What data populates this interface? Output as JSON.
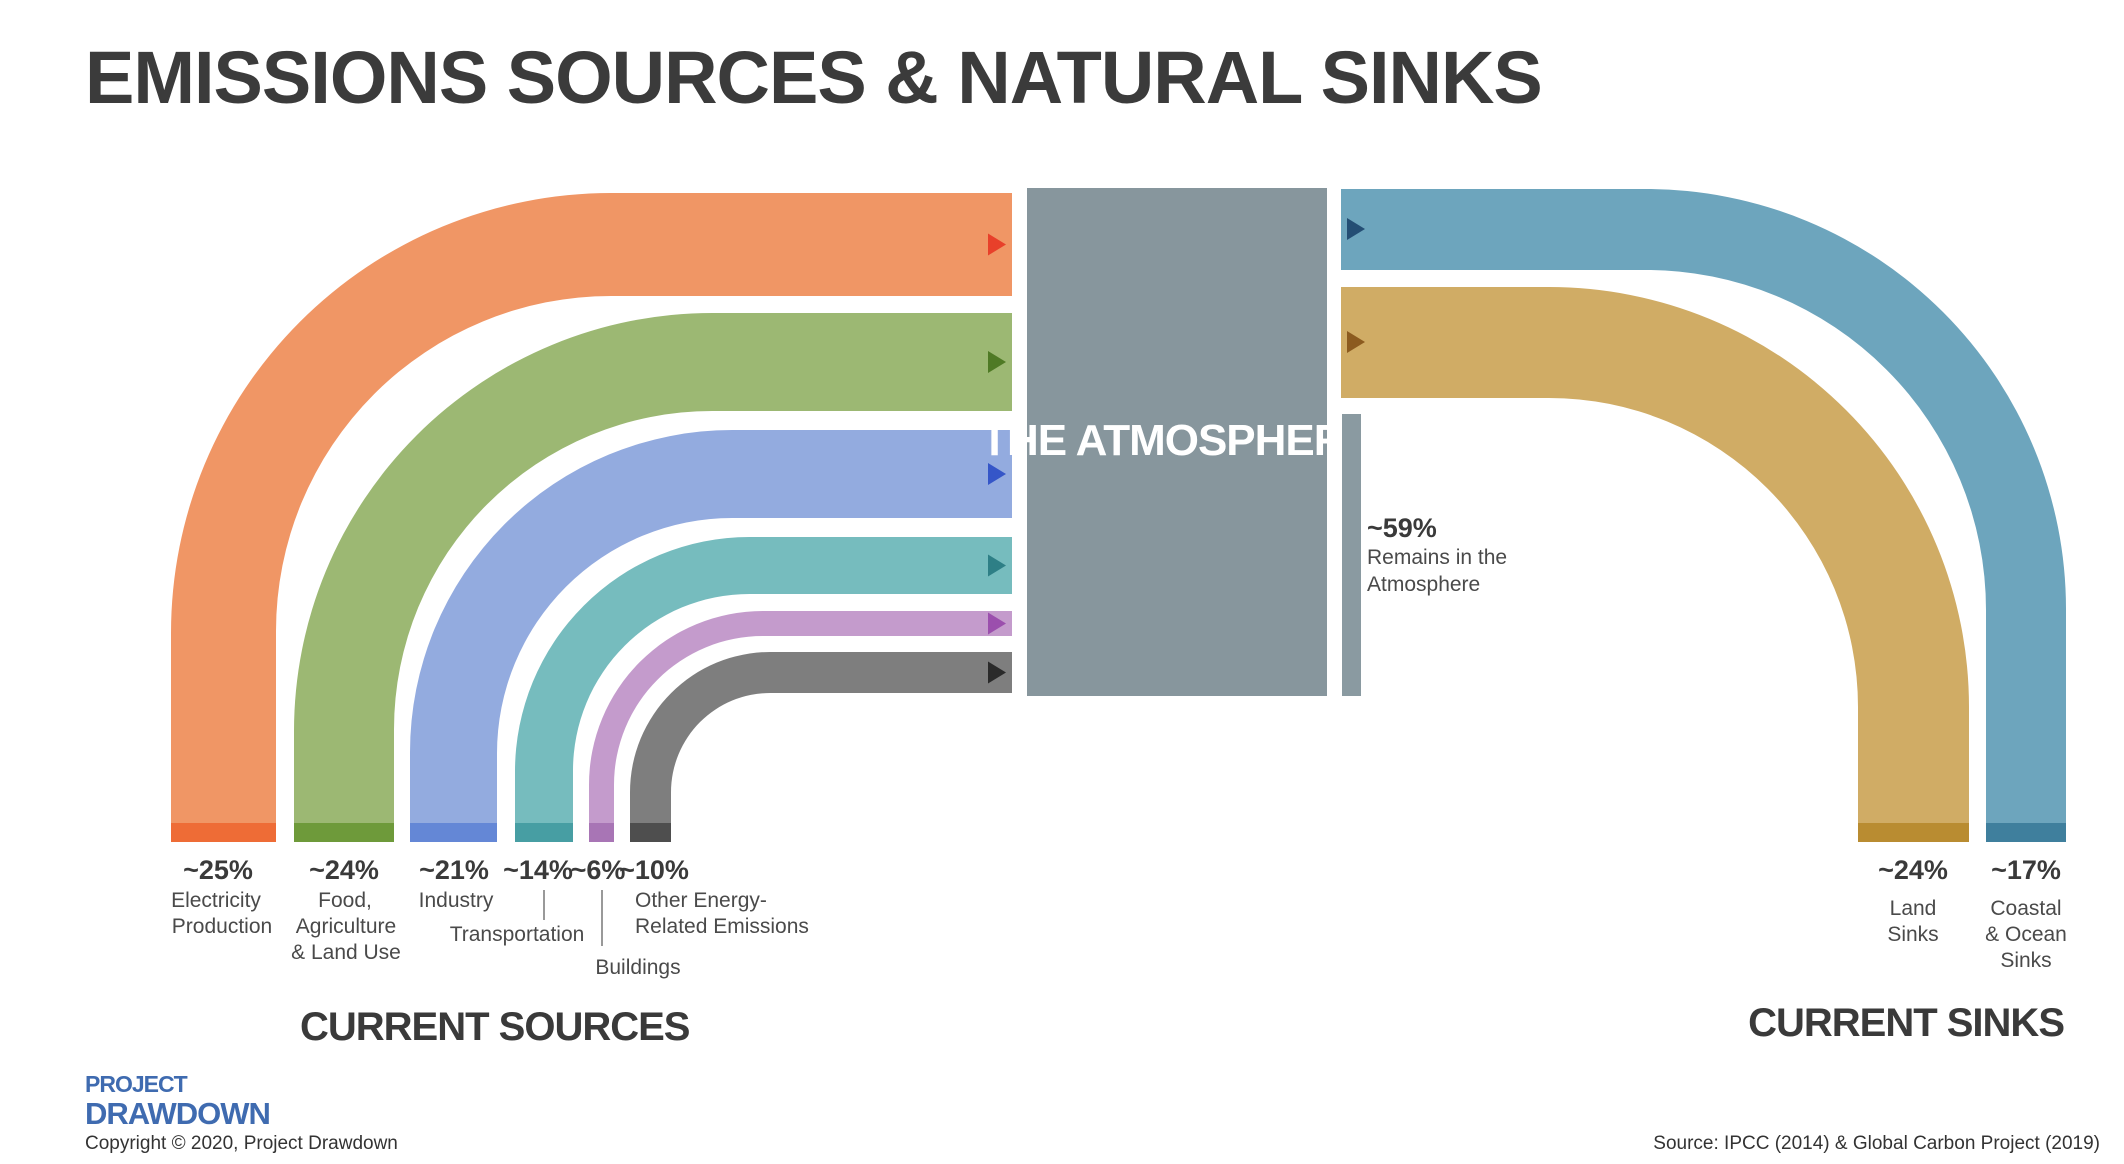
{
  "title": "EMISSIONS SOURCES & NATURAL SINKS",
  "atmosphere": {
    "label": "THE ATMOSPHERE",
    "color": "#87969d"
  },
  "remains": {
    "pct": "~59%",
    "label_lines": [
      "Remains in the",
      "Atmosphere"
    ],
    "color": "#8a9aa1"
  },
  "sources_header": "CURRENT SOURCES",
  "sinks_header": "CURRENT SINKS",
  "sources": [
    {
      "id": "electricity",
      "pct": "~25%",
      "label_lines": [
        "Electricity",
        "Production"
      ],
      "color": "#f09665",
      "base_color": "#ee6c36",
      "arrow_color": "#e8402a"
    },
    {
      "id": "food",
      "pct": "~24%",
      "label_lines": [
        "Food,",
        "Agriculture",
        "& Land Use"
      ],
      "color": "#9cb873",
      "base_color": "#6e9a3a",
      "arrow_color": "#4f7a25"
    },
    {
      "id": "industry",
      "pct": "~21%",
      "label_lines": [
        "Industry"
      ],
      "color": "#93abdf",
      "base_color": "#6487d6",
      "arrow_color": "#3556c8"
    },
    {
      "id": "transportation",
      "pct": "~14%",
      "label_lines": [
        "Transportation"
      ],
      "color": "#76bcbe",
      "base_color": "#479ea3",
      "arrow_color": "#2e7f86"
    },
    {
      "id": "buildings",
      "pct": "~6%",
      "label_lines": [
        "Buildings"
      ],
      "color": "#c49bcc",
      "base_color": "#a875b5",
      "arrow_color": "#9b4fad"
    },
    {
      "id": "other-energy",
      "pct": "~10%",
      "label_lines": [
        "Other Energy-",
        "Related Emissions"
      ],
      "color": "#7e7e7e",
      "base_color": "#4e4e4e",
      "arrow_color": "#2a2a2a"
    }
  ],
  "sinks": [
    {
      "id": "land",
      "pct": "~24%",
      "label_lines": [
        "Land",
        "Sinks"
      ],
      "color": "#d0ac65",
      "base_color": "#b98c31",
      "arrow_color": "#8c5b1f"
    },
    {
      "id": "coastal-ocean",
      "pct": "~17%",
      "label_lines": [
        "Coastal",
        "& Ocean",
        "Sinks"
      ],
      "color": "#6da5bd",
      "base_color": "#3f7f9d",
      "arrow_color": "#244e74"
    }
  ],
  "footer": {
    "logo_line1": "PROJECT",
    "logo_line2": "DRAWDOWN",
    "logo_color": "#3f6bb0",
    "copyright": "Copyright © 2020, Project Drawdown",
    "source": "Source: IPCC (2014) & Global Carbon Project (2019)"
  }
}
